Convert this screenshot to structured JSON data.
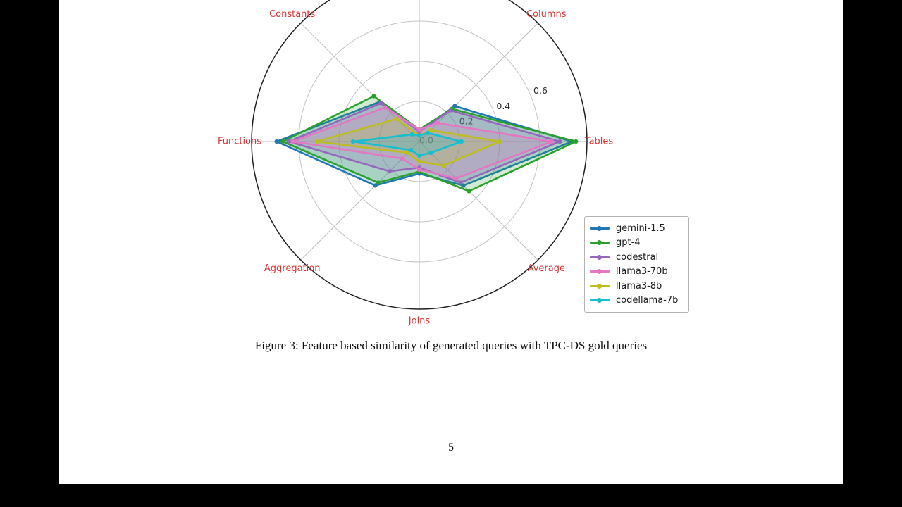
{
  "page": {
    "figure_caption": "Figure 3: Feature based similarity of generated queries with TPC-DS gold queries",
    "page_number": "5"
  },
  "chart_data": {
    "type": "radar",
    "title": "",
    "axes": [
      "",
      "Columns",
      "Tables",
      "Average",
      "Joins",
      "Aggregation",
      "Functions",
      "Constants"
    ],
    "axis_angles_deg": [
      90,
      45,
      0,
      -45,
      -90,
      -135,
      180,
      135
    ],
    "axis_label_color": "#d93333",
    "r_ticks": [
      "0.0",
      "0.2",
      "0.4",
      "0.6"
    ],
    "r_tick_values": [
      0.0,
      0.2,
      0.4,
      0.6
    ],
    "r_max": 0.835,
    "grid": true,
    "legend_position": "right-center",
    "series": [
      {
        "name": "gemini-1.5",
        "color": "#1f77b4",
        "values": [
          0.05,
          0.25,
          0.76,
          0.31,
          0.16,
          0.31,
          0.71,
          0.28
        ]
      },
      {
        "name": "gpt-4",
        "color": "#2ca02c",
        "values": [
          0.06,
          0.23,
          0.78,
          0.35,
          0.15,
          0.29,
          0.68,
          0.32
        ]
      },
      {
        "name": "codestral",
        "color": "#9467bd",
        "values": [
          0.05,
          0.22,
          0.7,
          0.29,
          0.13,
          0.21,
          0.65,
          0.27
        ]
      },
      {
        "name": "llama3-70b",
        "color": "#e377c2",
        "values": [
          0.06,
          0.13,
          0.66,
          0.26,
          0.14,
          0.12,
          0.63,
          0.24
        ]
      },
      {
        "name": "llama3-8b",
        "color": "#bcbd22",
        "values": [
          0.03,
          0.08,
          0.4,
          0.17,
          0.1,
          0.08,
          0.51,
          0.16
        ]
      },
      {
        "name": "codellama-7b",
        "color": "#17becf",
        "values": [
          0.03,
          0.06,
          0.21,
          0.08,
          0.07,
          0.06,
          0.33,
          0.05
        ]
      }
    ]
  }
}
